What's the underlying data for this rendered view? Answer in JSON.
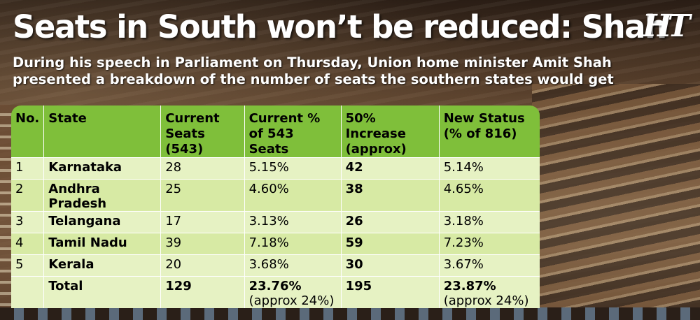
{
  "headline": "Seats in South won’t be reduced: Shah",
  "logo": "HT",
  "subhead": "During his speech in Parliament on Thursday, Union home minister Amit Shah presented a breakdown of the number of seats the southern states would get",
  "table": {
    "headers": [
      [
        "No."
      ],
      [
        "State"
      ],
      [
        "Current",
        "Seats (543)"
      ],
      [
        "Current %",
        "of 543 Seats"
      ],
      [
        "50% Increase",
        "(approx)"
      ],
      [
        "New Status",
        "(% of 816)"
      ]
    ],
    "rows": [
      [
        "1",
        "Karnataka",
        "28",
        "5.15%",
        "42",
        "5.14%"
      ],
      [
        "2",
        "Andhra Pradesh",
        "25",
        "4.60%",
        "38",
        "4.65%"
      ],
      [
        "3",
        "Telangana",
        "17",
        "3.13%",
        "26",
        "3.18%"
      ],
      [
        "4",
        "Tamil Nadu",
        "39",
        "7.18%",
        "59",
        "7.23%"
      ],
      [
        "5",
        "Kerala",
        "20",
        "3.68%",
        "30",
        "3.67%"
      ]
    ],
    "total": {
      "label": "Total",
      "current_seats": "129",
      "current_pct": "23.76%",
      "current_pct_note": "(approx 24%)",
      "increase": "195",
      "new_pct": "23.87%",
      "new_pct_note": "(approx 24%)"
    }
  },
  "colors": {
    "header_green": "#7fbf3a",
    "row_light": "#e6f2c3",
    "row_dark": "#d7eaa4"
  }
}
